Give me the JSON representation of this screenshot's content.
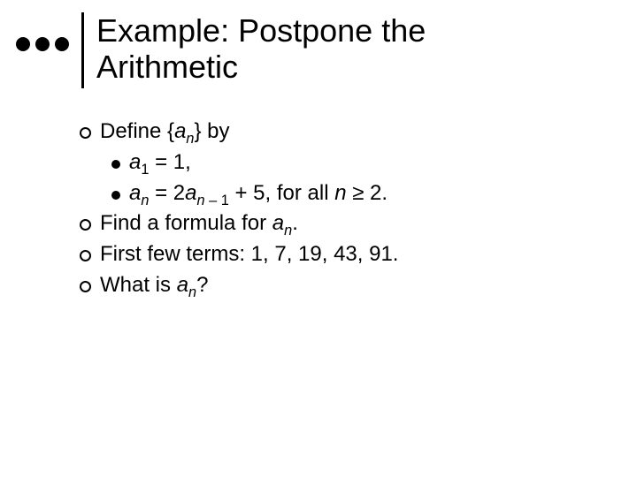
{
  "title_line1": "Example:  Postpone the",
  "title_line2": "Arithmetic",
  "bullets": {
    "b1_pre": "Define {",
    "b1_var": "a",
    "b1_sub": "n",
    "b1_post": "} by",
    "s1_var": "a",
    "s1_sub": "1",
    "s1_rest": " = 1,",
    "s2_var1": "a",
    "s2_sub1": "n",
    "s2_eq": " = 2",
    "s2_var2": "a",
    "s2_sub2": "n",
    "s2_sub2b": " – 1",
    "s2_plus": " + 5, for all ",
    "s2_nvar": "n",
    "s2_ge": " ≥ 2.",
    "b2_pre": "Find a formula for ",
    "b2_var": "a",
    "b2_sub": "n",
    "b2_post": ".",
    "b3": "First few terms:  1, 7, 19, 43, 91.",
    "b4_pre": "What is ",
    "b4_var": "a",
    "b4_sub": "n",
    "b4_post": "?"
  },
  "colors": {
    "text": "#000000",
    "background": "#ffffff"
  }
}
